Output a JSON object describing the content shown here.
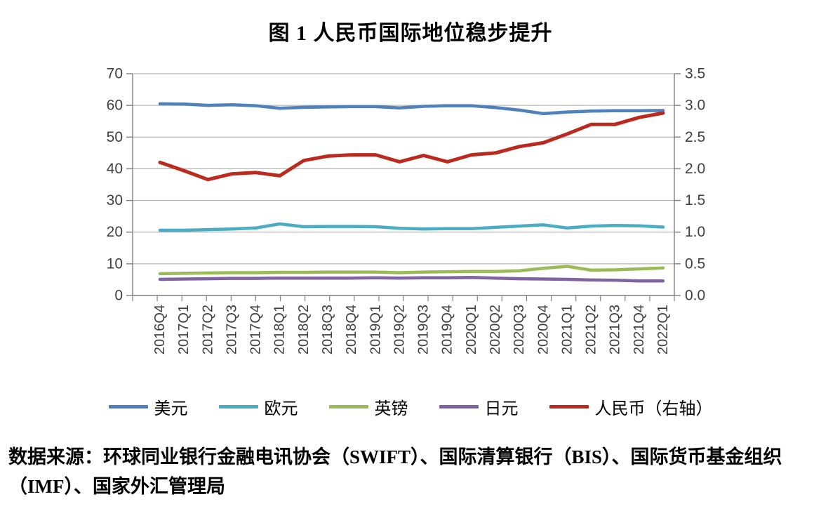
{
  "title": "图 1 人民币国际地位稳步提升",
  "source_note": "数据来源：环球同业银行金融电讯协会（SWIFT）、国际清算银行（BIS）、国际货币基金组织（IMF）、国家外汇管理局",
  "colors": {
    "grid": "#A6A6A6",
    "axis": "#808080",
    "tick_text": "#3F3F3F"
  },
  "chart_data": {
    "type": "line",
    "title": "图 1 人民币国际地位稳步提升",
    "grid": true,
    "legend_position": "bottom",
    "categories": [
      "2016Q4",
      "2017Q1",
      "2017Q2",
      "2017Q3",
      "2017Q4",
      "2018Q1",
      "2018Q2",
      "2018Q3",
      "2018Q4",
      "2019Q1",
      "2019Q2",
      "2019Q3",
      "2019Q4",
      "2020Q1",
      "2020Q2",
      "2020Q3",
      "2020Q4",
      "2021Q1",
      "2021Q2",
      "2021Q3",
      "2021Q4",
      "2022Q1"
    ],
    "left_axis": {
      "min": 0,
      "max": 70,
      "step": 10,
      "tick_labels": [
        "0",
        "10",
        "20",
        "30",
        "40",
        "50",
        "60",
        "70"
      ]
    },
    "right_axis": {
      "min": 0,
      "max": 3.5,
      "step": 0.5,
      "tick_labels": [
        "0.0",
        "0.5",
        "1.0",
        "1.5",
        "2.0",
        "2.5",
        "3.0",
        "3.5"
      ]
    },
    "series": [
      {
        "name": "美元",
        "axis": "left",
        "color": "#4F81BD",
        "values": [
          60.5,
          60.4,
          60.0,
          60.2,
          59.9,
          59.1,
          59.4,
          59.5,
          59.6,
          59.6,
          59.2,
          59.7,
          59.9,
          59.9,
          59.3,
          58.5,
          57.4,
          57.9,
          58.2,
          58.3,
          58.3,
          58.4
        ]
      },
      {
        "name": "欧元",
        "axis": "left",
        "color": "#4BACC6",
        "values": [
          20.6,
          20.6,
          20.8,
          21.0,
          21.3,
          22.6,
          21.7,
          21.8,
          21.8,
          21.7,
          21.2,
          21.0,
          21.1,
          21.1,
          21.5,
          21.9,
          22.3,
          21.3,
          21.9,
          22.1,
          22.0,
          21.6
        ]
      },
      {
        "name": "英镑",
        "axis": "left",
        "color": "#9BBB59",
        "values": [
          6.9,
          7.0,
          7.1,
          7.2,
          7.2,
          7.3,
          7.3,
          7.4,
          7.4,
          7.4,
          7.2,
          7.4,
          7.5,
          7.6,
          7.6,
          7.8,
          8.6,
          9.2,
          8.0,
          8.1,
          8.4,
          8.7
        ]
      },
      {
        "name": "日元",
        "axis": "left",
        "color": "#8064A2",
        "values": [
          5.1,
          5.2,
          5.3,
          5.4,
          5.4,
          5.5,
          5.5,
          5.5,
          5.5,
          5.6,
          5.5,
          5.6,
          5.6,
          5.7,
          5.5,
          5.3,
          5.2,
          5.1,
          4.9,
          4.8,
          4.6,
          4.6
        ]
      },
      {
        "name": "人民币（右轴）",
        "axis": "right",
        "color": "#BB2A1E",
        "values": [
          2.1,
          1.97,
          1.83,
          1.92,
          1.94,
          1.89,
          2.13,
          2.2,
          2.22,
          2.22,
          2.11,
          2.21,
          2.11,
          2.22,
          2.25,
          2.35,
          2.41,
          2.55,
          2.7,
          2.7,
          2.81,
          2.88
        ]
      }
    ]
  }
}
